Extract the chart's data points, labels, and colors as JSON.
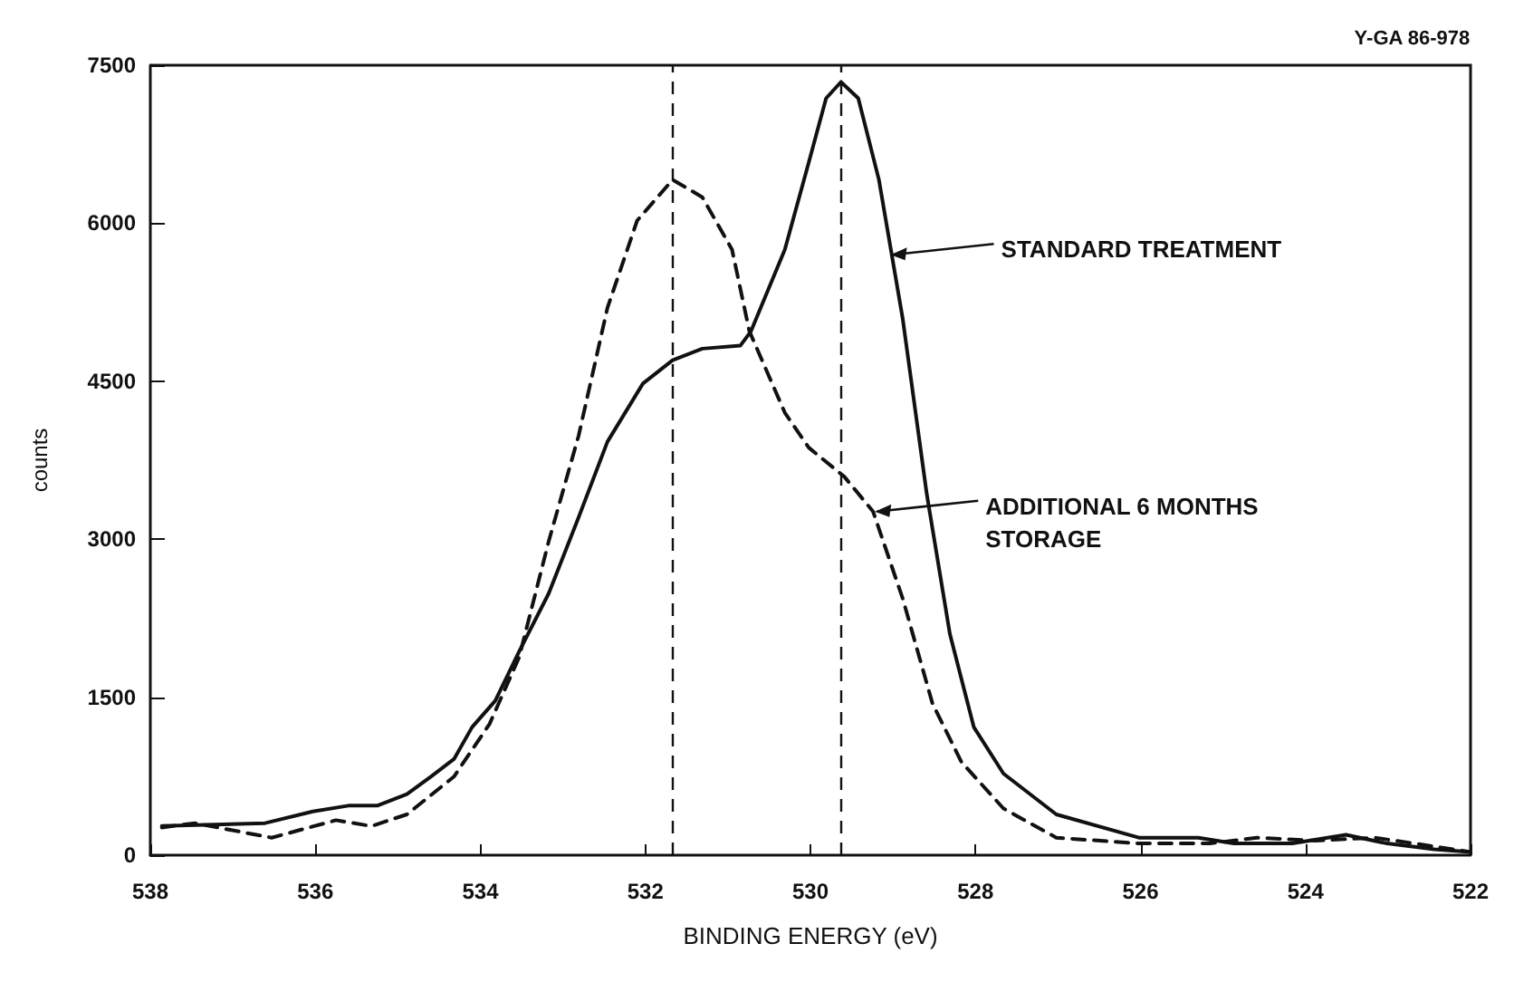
{
  "chart_data": {
    "type": "line",
    "xlabel": "BINDING ENERGY (eV)",
    "ylabel": "counts",
    "xlim": [
      538,
      522
    ],
    "xticks": [
      538,
      536,
      534,
      532,
      530,
      528,
      526,
      524,
      522
    ],
    "ylim": [
      0,
      7500
    ],
    "yticks": [
      0,
      1500,
      3000,
      4500,
      6000,
      7500
    ],
    "grid": false,
    "marker": "none",
    "series": [
      {
        "color": "#111111",
        "line_style": "solid",
        "x": [
          537.86,
          536.61,
          536.03,
          535.6,
          535.25,
          534.89,
          534.6,
          534.32,
          534.1,
          533.82,
          533.53,
          533.17,
          532.81,
          532.46,
          532.03,
          531.67,
          531.31,
          530.85,
          530.72,
          530.31,
          530.02,
          529.81,
          529.63,
          529.42,
          529.17,
          528.88,
          528.59,
          528.31,
          528.02,
          527.66,
          527.02,
          526.02,
          525.3,
          524.87,
          524.16,
          523.51,
          523.01,
          522.44,
          522.0
        ],
        "values": [
          277,
          304,
          415,
          470,
          470,
          580,
          746,
          912,
          1216,
          1465,
          1935,
          2488,
          3206,
          3925,
          4478,
          4699,
          4809,
          4837,
          4975,
          5750,
          6578,
          7186,
          7341,
          7186,
          6413,
          5086,
          3428,
          2101,
          1216,
          774,
          387,
          166,
          166,
          111,
          111,
          193,
          111,
          55,
          30
        ]
      },
      {
        "color": "#111111",
        "line_style": "dashed",
        "x": [
          537.86,
          537.46,
          536.53,
          535.75,
          535.32,
          534.89,
          534.32,
          533.89,
          533.53,
          533.17,
          532.81,
          532.46,
          532.1,
          531.67,
          531.31,
          530.95,
          530.74,
          530.31,
          530.02,
          529.59,
          529.24,
          528.88,
          528.52,
          528.17,
          527.66,
          527.02,
          526.02,
          525.16,
          524.59,
          523.87,
          523.16,
          522.44,
          522.0
        ],
        "values": [
          263,
          304,
          166,
          332,
          276,
          387,
          746,
          1244,
          1879,
          2985,
          3980,
          5196,
          6025,
          6413,
          6247,
          5750,
          4975,
          4201,
          3869,
          3594,
          3262,
          2432,
          1438,
          884,
          443,
          166,
          111,
          111,
          166,
          138,
          166,
          83,
          30
        ]
      }
    ],
    "ref_lines": [
      {
        "axis": "x",
        "value": 531.67,
        "line_style": "dashed",
        "color": "#111111"
      },
      {
        "axis": "x",
        "value": 529.63,
        "line_style": "dashed",
        "color": "#111111"
      }
    ],
    "annotations": [
      {
        "text": "STANDARD TREATMENT",
        "x": 529.05,
        "y": 5700
      },
      {
        "text": "ADDITIONAL 6 MONTHS\nSTORAGE",
        "x": 529.24,
        "y": 3262
      },
      "Y-GA 86-978"
    ]
  }
}
